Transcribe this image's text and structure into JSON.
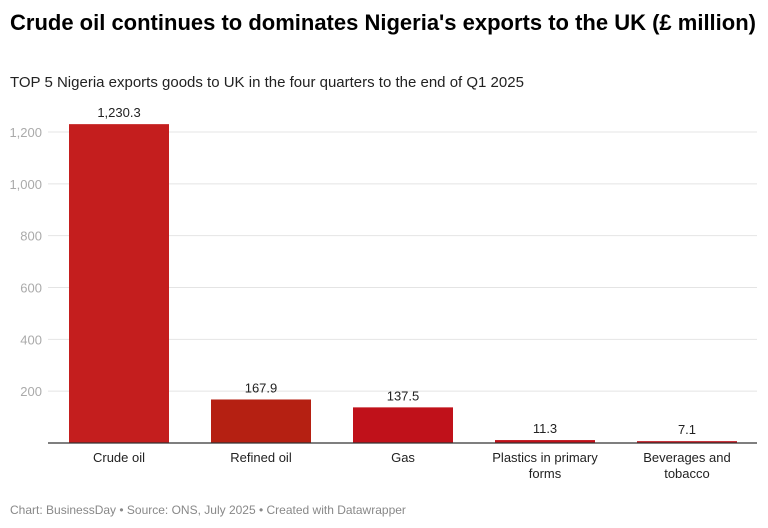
{
  "chart_data": {
    "type": "bar",
    "title": "Crude oil continues to dominates Nigeria's exports to the UK (£ million)",
    "subtitle": "TOP 5 Nigeria exports goods to UK in the four quarters to the end of Q1 2025",
    "categories": [
      "Crude oil",
      "Refined oil",
      "Gas",
      "Plastics in primary forms",
      "Beverages and tobacco"
    ],
    "category_lines": [
      [
        "Crude oil"
      ],
      [
        "Refined oil"
      ],
      [
        "Gas"
      ],
      [
        "Plastics in primary",
        "forms"
      ],
      [
        "Beverages and",
        "tobacco"
      ]
    ],
    "values": [
      1230.3,
      167.9,
      137.5,
      11.3,
      7.1
    ],
    "value_labels": [
      "1,230.3",
      "167.9",
      "137.5",
      "11.3",
      "7.1"
    ],
    "colors": [
      "#c41e1e",
      "#b52012",
      "#c0111a",
      "#c0111a",
      "#c0111a"
    ],
    "yticks": [
      200,
      400,
      600,
      800,
      1000,
      1200
    ],
    "ytick_labels": [
      "200",
      "400",
      "600",
      "800",
      "1,000",
      "1,200"
    ],
    "ylim": [
      0,
      1200
    ],
    "grid": true,
    "xlabel": "",
    "ylabel": ""
  },
  "footer": "Chart: BusinessDay • Source: ONS, July 2025 • Created with Datawrapper"
}
